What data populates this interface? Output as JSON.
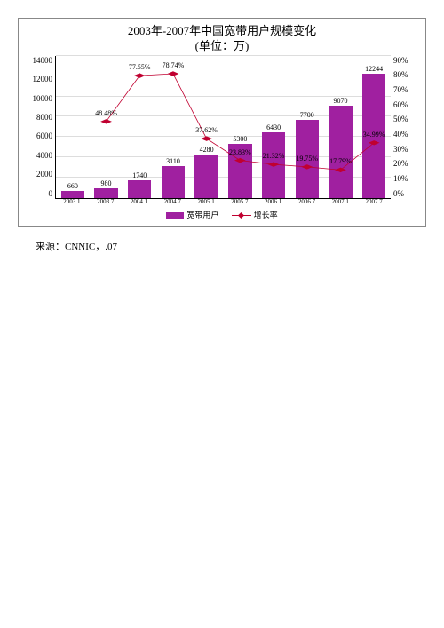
{
  "chart": {
    "type": "bar+line",
    "title_line1": "2003年-2007年中国宽带用户规模变化",
    "title_line2": "(单位：万)",
    "title_fontsize": 13,
    "background_color": "#ffffff",
    "border_color": "#888888",
    "grid_color": "#dddddd",
    "bar_color": "#a020a0",
    "line_color": "#c00030",
    "marker_style": "diamond",
    "label_fontsize": 8,
    "axis_fontsize": 9,
    "bar_width": 0.7,
    "y_left": {
      "min": 0,
      "max": 14000,
      "step": 2000
    },
    "y_right": {
      "min": 0,
      "max": 90,
      "step": 10,
      "suffix": "%"
    },
    "categories": [
      "2003.1",
      "2003.7",
      "2004.1",
      "2004.7",
      "2005.1",
      "2005.7",
      "2006.1",
      "2006.7",
      "2007.1",
      "2007.7"
    ],
    "bar_series": {
      "name": "宽带用户",
      "values": [
        660,
        980,
        1740,
        3110,
        4280,
        5300,
        6430,
        7700,
        9070,
        12244
      ]
    },
    "line_series": {
      "name": "增长率",
      "values": [
        null,
        48.48,
        77.55,
        78.74,
        37.62,
        23.83,
        21.32,
        19.75,
        17.79,
        34.99
      ],
      "suffix": "%"
    },
    "legend": {
      "items": [
        "宽带用户",
        "增长率"
      ]
    }
  },
  "source": "来源：CNNIC，.07"
}
